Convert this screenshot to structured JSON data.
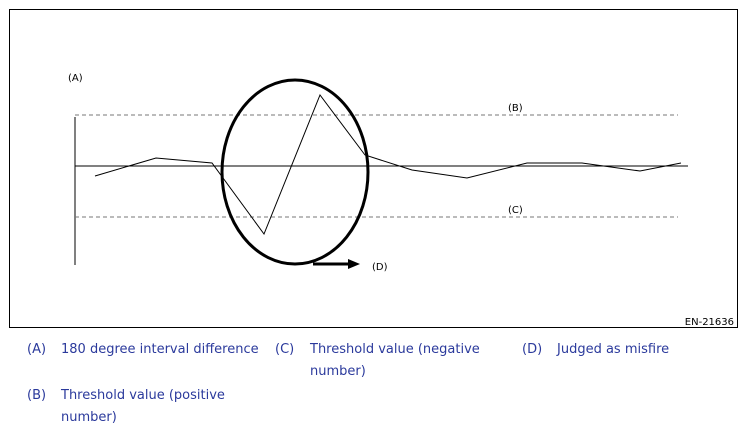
{
  "figure": {
    "labels": {
      "a": "(A)",
      "b": "(B)",
      "c": "(C)",
      "d": "(D)"
    },
    "id": "EN-21636"
  },
  "legend": [
    {
      "key": "(A)",
      "text": "180 degree interval difference"
    },
    {
      "key": "(B)",
      "text": "Threshold value (positive number)"
    },
    {
      "key": "(C)",
      "text": "Threshold value (negative number)"
    },
    {
      "key": "(D)",
      "text": "Judged as misfire"
    }
  ]
}
